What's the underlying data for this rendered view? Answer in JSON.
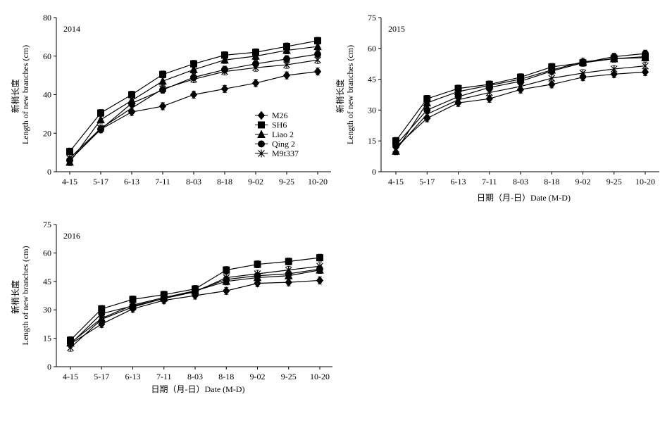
{
  "chart_data": [
    {
      "type": "line",
      "year_label": "2014",
      "categories": [
        "4-15",
        "5-17",
        "6-13",
        "7-11",
        "8-03",
        "8-18",
        "9-02",
        "9-25",
        "10-20"
      ],
      "ylim": [
        0,
        80
      ],
      "yticks": [
        0,
        20,
        40,
        60,
        80
      ],
      "ylabel_cn": "新梢长度",
      "ylabel_en": "Length of new branches (cm)",
      "xlabel": "",
      "legend": true,
      "legend_position": "inside-right",
      "series": [
        {
          "name": "M26",
          "marker": "diamond",
          "values": [
            6,
            22,
            31,
            34,
            40,
            43,
            46,
            50,
            52
          ]
        },
        {
          "name": "SH6",
          "marker": "square",
          "values": [
            10.5,
            30.5,
            40,
            50.5,
            56,
            60.5,
            62,
            65,
            68
          ]
        },
        {
          "name": "Liao 2",
          "marker": "triangle",
          "values": [
            5,
            27,
            37,
            47,
            53,
            58,
            60,
            63,
            65
          ]
        },
        {
          "name": "Qing 2",
          "marker": "circle",
          "values": [
            6,
            22,
            35.5,
            42.5,
            49,
            53,
            56,
            58.5,
            61
          ]
        },
        {
          "name": "M9t337",
          "marker": "asterisk",
          "values": [
            7,
            22.5,
            33,
            43,
            48,
            52,
            54,
            55.5,
            58
          ]
        }
      ]
    },
    {
      "type": "line",
      "year_label": "2015",
      "categories": [
        "4-15",
        "5-17",
        "6-13",
        "7-11",
        "8-03",
        "8-18",
        "9-02",
        "9-25",
        "10-20"
      ],
      "ylim": [
        0,
        75
      ],
      "yticks": [
        0,
        15,
        30,
        45,
        60,
        75
      ],
      "ylabel_cn": "新梢长度",
      "ylabel_en": "Length of new branches (cm)",
      "xlabel": "日期（月-日）Date (M-D)",
      "legend": false,
      "series": [
        {
          "name": "M26",
          "marker": "diamond",
          "values": [
            12,
            26,
            33.5,
            35.5,
            40,
            42.5,
            46,
            47.5,
            48.5
          ]
        },
        {
          "name": "SH6",
          "marker": "square",
          "values": [
            15,
            35.5,
            40.5,
            42.5,
            46,
            51,
            53,
            55,
            56
          ]
        },
        {
          "name": "Liao 2",
          "marker": "triangle",
          "values": [
            10,
            33.5,
            39,
            42,
            45,
            49.5,
            53.5,
            55,
            55.5
          ]
        },
        {
          "name": "Qing 2",
          "marker": "circle",
          "values": [
            13,
            30,
            36.5,
            41,
            44,
            49,
            53,
            56,
            57.5
          ]
        },
        {
          "name": "M9t337",
          "marker": "asterisk",
          "values": [
            11,
            28,
            35,
            38.5,
            41.5,
            45.5,
            48,
            50,
            51.5
          ]
        }
      ]
    },
    {
      "type": "line",
      "year_label": "2016",
      "categories": [
        "4-15",
        "5-17",
        "6-13",
        "7-11",
        "8-03",
        "8-18",
        "9-02",
        "9-25",
        "10-20"
      ],
      "ylim": [
        0,
        75
      ],
      "yticks": [
        0,
        15,
        30,
        45,
        60,
        75
      ],
      "ylabel_cn": "新梢长度",
      "ylabel_en": "Length of new branches (cm)",
      "xlabel": "日期（月-日）Date (M-D)",
      "legend": false,
      "series": [
        {
          "name": "M26",
          "marker": "diamond",
          "values": [
            12,
            22.5,
            30.5,
            35,
            37.5,
            40,
            44,
            44.5,
            45.5
          ]
        },
        {
          "name": "SH6",
          "marker": "square",
          "values": [
            14,
            30.5,
            35.5,
            38,
            41,
            51,
            54,
            55.5,
            57.5
          ]
        },
        {
          "name": "Liao 2",
          "marker": "triangle",
          "values": [
            12.5,
            25.5,
            32.5,
            36.5,
            40,
            45,
            47,
            48,
            51
          ]
        },
        {
          "name": "Qing 2",
          "marker": "circle",
          "values": [
            12,
            28,
            32,
            36,
            40,
            46,
            48,
            49,
            51.5
          ]
        },
        {
          "name": "M9t337",
          "marker": "asterisk",
          "values": [
            10,
            25,
            31.5,
            36,
            39.5,
            47,
            49,
            51,
            53
          ]
        }
      ]
    }
  ]
}
